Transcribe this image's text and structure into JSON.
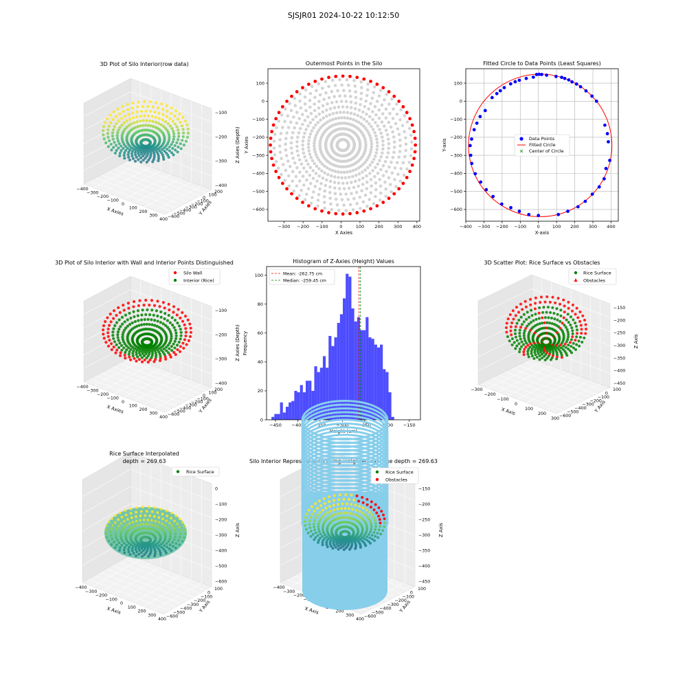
{
  "figure": {
    "title": "SJSJR01 2024-10-22 10:12:50",
    "colors": {
      "wall": "#ff0000",
      "rice": "#008000",
      "gray_points": "#d3d3d3",
      "data_points": "#0000ff",
      "fitted_circle": "#ff0000",
      "hist_bars": "#4d4dff",
      "mean_line": "#ff0000",
      "median_line": "#008000",
      "cylinder": "#87ceeb",
      "viridis": [
        "#440154",
        "#3b528b",
        "#21918c",
        "#5ec962",
        "#fde725"
      ]
    }
  },
  "chart_data": [
    {
      "id": "raw3d",
      "type": "scatter3d",
      "title": "3D Plot of Silo Interior(row data)",
      "xlabel": "X Axies",
      "ylabel": "Y Axies",
      "zlabel": "Z Axies (Depth)",
      "x_ticks": [
        "−400",
        "−300",
        "−200",
        "−100",
        "0",
        "100",
        "200",
        "300",
        "400"
      ],
      "y_ticks": [
        "200",
        "100",
        "0",
        "−100",
        "−200",
        "−300",
        "−400",
        "−500",
        "−600"
      ],
      "z_ticks": [
        "−100",
        "−200",
        "−300",
        "−400"
      ],
      "colormap": "viridis",
      "zlim": [
        -460,
        -80
      ]
    },
    {
      "id": "outer",
      "type": "scatter",
      "title": "Outermost Points in the Silo",
      "xlabel": "X Axies",
      "ylabel": "Y Axies",
      "xlim": [
        -385,
        415
      ],
      "ylim": [
        -665,
        180
      ],
      "x_ticks": [
        -300,
        -200,
        -100,
        0,
        100,
        200,
        300,
        400
      ],
      "y_ticks": [
        -600,
        -500,
        -400,
        -300,
        -200,
        -100,
        0,
        100
      ],
      "circle": {
        "center_x": 10,
        "center_y": -243,
        "radius": 382
      },
      "series": [
        {
          "role": "interior",
          "color": "#d3d3d3",
          "rings": 12,
          "rays": 60
        },
        {
          "role": "outermost",
          "color": "#ff0000",
          "count": 64
        }
      ]
    },
    {
      "id": "fit",
      "type": "scatter",
      "title": "Fitted Circle to Data Points (Least Squares)",
      "xlabel": "X-axis",
      "ylabel": "Y-axis",
      "xlim": [
        -400,
        440
      ],
      "ylim": [
        -665,
        180
      ],
      "x_ticks": [
        -400,
        -300,
        -200,
        -100,
        0,
        100,
        200,
        300,
        400
      ],
      "y_ticks": [
        -600,
        -500,
        -400,
        -300,
        -200,
        -100,
        0,
        100
      ],
      "grid": true,
      "legend_position": "center",
      "legend": [
        "Data Points",
        "Fitted Circle",
        "Center of Circle"
      ],
      "circle": {
        "center_x": 10,
        "center_y": -245,
        "radius": 395
      },
      "data_points": [
        [
          -10,
          148
        ],
        [
          4,
          149
        ],
        [
          18,
          148
        ],
        [
          45,
          144
        ],
        [
          97,
          137
        ],
        [
          128,
          132
        ],
        [
          145,
          126
        ],
        [
          167,
          118
        ],
        [
          185,
          107
        ],
        [
          210,
          95
        ],
        [
          232,
          80
        ],
        [
          262,
          57
        ],
        [
          295,
          28
        ],
        [
          320,
          0
        ],
        [
          366,
          -133
        ],
        [
          380,
          -180
        ],
        [
          385,
          -225
        ],
        [
          393,
          -328
        ],
        [
          372,
          -373
        ],
        [
          362,
          -430
        ],
        [
          335,
          -475
        ],
        [
          297,
          -515
        ],
        [
          258,
          -555
        ],
        [
          218,
          -585
        ],
        [
          162,
          -610
        ],
        [
          110,
          -628
        ],
        [
          0,
          -633
        ],
        [
          -53,
          -628
        ],
        [
          -105,
          -610
        ],
        [
          -152,
          -590
        ],
        [
          -202,
          -570
        ],
        [
          -250,
          -528
        ],
        [
          -287,
          -490
        ],
        [
          -318,
          -448
        ],
        [
          -348,
          -402
        ],
        [
          -367,
          -345
        ],
        [
          -373,
          -300
        ],
        [
          -376,
          -246
        ],
        [
          -368,
          -210
        ],
        [
          -354,
          -158
        ],
        [
          -339,
          -122
        ],
        [
          -321,
          -85
        ],
        [
          -293,
          -52
        ],
        [
          -255,
          20
        ],
        [
          -229,
          42
        ],
        [
          -210,
          58
        ],
        [
          -188,
          75
        ],
        [
          -153,
          96
        ],
        [
          -128,
          108
        ],
        [
          -105,
          116
        ],
        [
          -67,
          126
        ],
        [
          -28,
          133
        ]
      ]
    },
    {
      "id": "wall3d",
      "type": "scatter3d",
      "title": "3D Plot of Silo Interior with Wall and Interior Points Distinguished",
      "xlabel": "X Axies",
      "ylabel": "Y Axies",
      "zlabel": "Z Axies (Depth)",
      "x_ticks": [
        "−400",
        "−300",
        "−200",
        "−100",
        "0",
        "100",
        "200",
        "300",
        "400"
      ],
      "y_ticks": [
        "200",
        "100",
        "0",
        "−100",
        "−200",
        "−300",
        "−400",
        "−500",
        "−600"
      ],
      "z_ticks": [
        "−100",
        "−200",
        "−300",
        "−400"
      ],
      "legend": [
        "Silo Wall",
        "Interior (Rice)"
      ]
    },
    {
      "id": "hist",
      "type": "bar",
      "title": "Histogram of Z-Axies (Height) Values",
      "xlabel": "Height (cm)",
      "ylabel": "Frequency",
      "xlim": [
        -470,
        -125
      ],
      "ylim": [
        0,
        106
      ],
      "x_ticks": [
        -450,
        -400,
        -350,
        -300,
        -250,
        -200,
        -150
      ],
      "y_ticks": [
        0,
        20,
        40,
        60,
        80,
        100
      ],
      "bin_start": -459,
      "bin_width": 6.4,
      "counts": [
        2,
        4,
        4,
        12,
        5,
        9,
        12,
        13,
        20,
        19,
        24,
        19,
        27,
        27,
        20,
        37,
        33,
        36,
        44,
        36,
        58,
        51,
        57,
        67,
        73,
        84,
        101,
        99,
        77,
        68,
        71,
        62,
        62,
        71,
        57,
        56,
        52,
        50,
        52,
        35,
        33,
        19,
        2
      ],
      "mean": -262.75,
      "median": -259.45,
      "legend": [
        "Mean: -262.75 cm",
        "Median: -259.45 cm"
      ]
    },
    {
      "id": "rice3d",
      "type": "scatter3d",
      "title": "3D Scatter Plot: Rice Surface vs Obstacles",
      "xlabel": "X Axis",
      "ylabel": "Y Axis",
      "zlabel": "Z Axis",
      "x_ticks": [
        "−300",
        "−200",
        "−100",
        "0",
        "100",
        "200",
        "300"
      ],
      "y_ticks": [
        "100",
        "0",
        "−100",
        "−200",
        "−300",
        "−400",
        "−500",
        "−600"
      ],
      "z_ticks": [
        "−150",
        "−200",
        "−250",
        "−300",
        "−350",
        "−400",
        "−450"
      ],
      "legend": [
        "Rice Surface",
        "Obstacles"
      ]
    },
    {
      "id": "interp3d",
      "type": "surface3d",
      "title": "Rice Surface Interpolated",
      "subtitle": "depth = 269.63",
      "xlabel": "X Axis",
      "ylabel": "Y Axis",
      "zlabel": "Z Axis",
      "x_ticks": [
        "−400",
        "−300",
        "−200",
        "−100",
        "0",
        "100",
        "200",
        "300",
        "400"
      ],
      "y_ticks": [
        "100",
        "0",
        "−100",
        "−200",
        "−300",
        "−400",
        "−500",
        "−600"
      ],
      "z_ticks": [
        "0",
        "−100",
        "−200",
        "−300",
        "−400",
        "−500",
        "−600"
      ],
      "legend": [
        "Rice Surface"
      ]
    },
    {
      "id": "silo3d",
      "type": "surface3d",
      "title": "Silo Interior Representation using weighted average depth = 269.63",
      "xlabel": "X Axis",
      "ylabel": "Y Axis",
      "zlabel": "Z Axis",
      "x_ticks": [
        "−400",
        "−300",
        "−200",
        "−100",
        "0",
        "100",
        "200",
        "300",
        "400"
      ],
      "y_ticks": [
        "100",
        "0",
        "−100",
        "−200",
        "−300",
        "−400",
        "−500",
        "−600"
      ],
      "z_ticks": [
        "−150",
        "−200",
        "−250",
        "−300",
        "−350",
        "−400",
        "−450"
      ],
      "legend": [
        "Rice Surface",
        "Obstacles"
      ]
    }
  ]
}
